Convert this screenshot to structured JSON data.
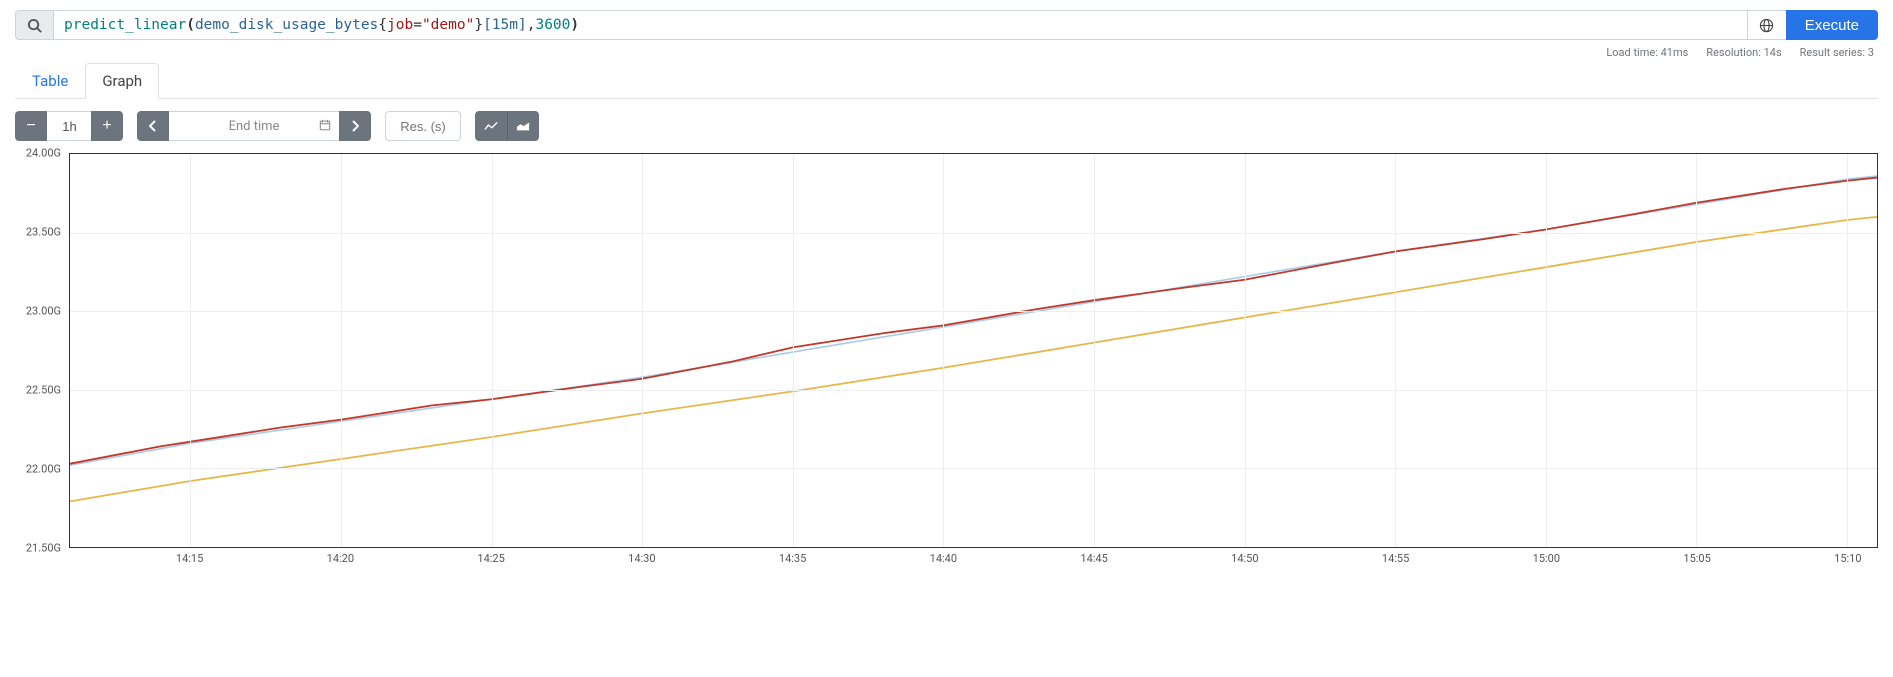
{
  "query": {
    "tokens": [
      {
        "cls": "tok-func",
        "t": "predict_linear"
      },
      {
        "cls": "tok-paren",
        "t": "("
      },
      {
        "cls": "tok-metric",
        "t": "demo_disk_usage_bytes"
      },
      {
        "cls": "tok-brace",
        "t": "{"
      },
      {
        "cls": "tok-label",
        "t": "job"
      },
      {
        "cls": "tok-eq",
        "t": "="
      },
      {
        "cls": "tok-str",
        "t": "\"demo\""
      },
      {
        "cls": "tok-brace",
        "t": "}"
      },
      {
        "cls": "tok-range",
        "t": "[15m]"
      },
      {
        "cls": "tok-eq",
        "t": ", "
      },
      {
        "cls": "tok-num",
        "t": "3600"
      },
      {
        "cls": "tok-paren",
        "t": ")"
      }
    ],
    "execute_label": "Execute"
  },
  "status": {
    "load_time": "Load time: 41ms",
    "resolution": "Resolution: 14s",
    "result_series": "Result series: 3"
  },
  "tabs": {
    "table": "Table",
    "graph": "Graph",
    "active": "graph"
  },
  "controls": {
    "range_value": "1h",
    "end_time_placeholder": "End time",
    "res_placeholder": "Res. (s)"
  },
  "chart": {
    "type": "line",
    "background_color": "#ffffff",
    "grid_color": "#eeeeee",
    "border_color": "#333333",
    "ylim": [
      21.5,
      24.0
    ],
    "y_ticks": [
      {
        "v": 24.0,
        "label": "24.00G"
      },
      {
        "v": 23.5,
        "label": "23.50G"
      },
      {
        "v": 23.0,
        "label": "23.00G"
      },
      {
        "v": 22.5,
        "label": "22.50G"
      },
      {
        "v": 22.0,
        "label": "22.00G"
      },
      {
        "v": 21.5,
        "label": "21.50G"
      }
    ],
    "x_domain_minutes": [
      11,
      71
    ],
    "x_ticks": [
      {
        "min": 15,
        "label": "14:15"
      },
      {
        "min": 20,
        "label": "14:20"
      },
      {
        "min": 25,
        "label": "14:25"
      },
      {
        "min": 30,
        "label": "14:30"
      },
      {
        "min": 35,
        "label": "14:35"
      },
      {
        "min": 40,
        "label": "14:40"
      },
      {
        "min": 45,
        "label": "14:45"
      },
      {
        "min": 50,
        "label": "14:50"
      },
      {
        "min": 55,
        "label": "14:55"
      },
      {
        "min": 60,
        "label": "15:00"
      },
      {
        "min": 65,
        "label": "15:05"
      },
      {
        "min": 70,
        "label": "15:10"
      }
    ],
    "series": [
      {
        "name": "series-blue",
        "color": "#a9cbe8",
        "line_width": 1.6,
        "points": [
          [
            11,
            22.02
          ],
          [
            15,
            22.16
          ],
          [
            20,
            22.3
          ],
          [
            25,
            22.44
          ],
          [
            30,
            22.58
          ],
          [
            35,
            22.74
          ],
          [
            40,
            22.9
          ],
          [
            45,
            23.06
          ],
          [
            50,
            23.22
          ],
          [
            55,
            23.38
          ],
          [
            60,
            23.52
          ],
          [
            65,
            23.68
          ],
          [
            70,
            23.84
          ],
          [
            71,
            23.86
          ]
        ]
      },
      {
        "name": "series-red",
        "color": "#c0392b",
        "line_width": 1.8,
        "points": [
          [
            11,
            22.03
          ],
          [
            14,
            22.14
          ],
          [
            15,
            22.17
          ],
          [
            18,
            22.26
          ],
          [
            20,
            22.31
          ],
          [
            23,
            22.4
          ],
          [
            25,
            22.44
          ],
          [
            28,
            22.52
          ],
          [
            30,
            22.57
          ],
          [
            33,
            22.68
          ],
          [
            35,
            22.77
          ],
          [
            38,
            22.86
          ],
          [
            40,
            22.91
          ],
          [
            43,
            23.01
          ],
          [
            45,
            23.07
          ],
          [
            48,
            23.15
          ],
          [
            50,
            23.2
          ],
          [
            53,
            23.31
          ],
          [
            55,
            23.38
          ],
          [
            58,
            23.46
          ],
          [
            60,
            23.52
          ],
          [
            63,
            23.62
          ],
          [
            65,
            23.69
          ],
          [
            68,
            23.78
          ],
          [
            70,
            23.83
          ],
          [
            71,
            23.85
          ]
        ]
      },
      {
        "name": "series-yellow",
        "color": "#e6b74a",
        "line_width": 1.8,
        "points": [
          [
            11,
            21.79
          ],
          [
            15,
            21.92
          ],
          [
            20,
            22.06
          ],
          [
            25,
            22.2
          ],
          [
            30,
            22.35
          ],
          [
            35,
            22.49
          ],
          [
            40,
            22.64
          ],
          [
            45,
            22.8
          ],
          [
            50,
            22.96
          ],
          [
            55,
            23.12
          ],
          [
            60,
            23.28
          ],
          [
            65,
            23.44
          ],
          [
            70,
            23.58
          ],
          [
            71,
            23.6
          ]
        ]
      }
    ]
  }
}
